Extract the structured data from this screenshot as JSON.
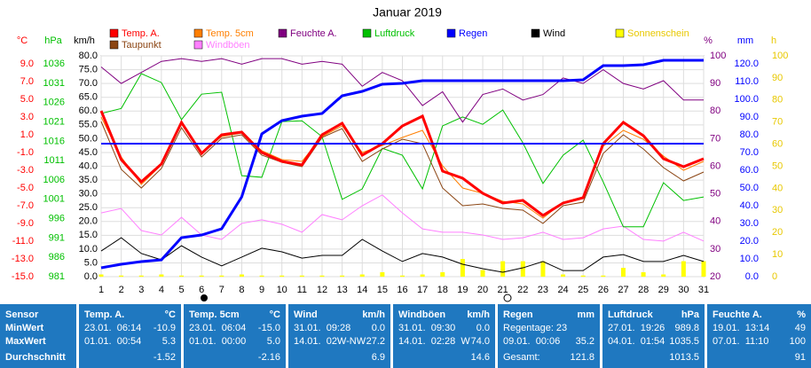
{
  "chart_data": {
    "type": "line",
    "title": "Januar 2019",
    "categories": [
      "1",
      "2",
      "3",
      "4",
      "5",
      "6",
      "7",
      "8",
      "9",
      "10",
      "11",
      "12",
      "13",
      "14",
      "15",
      "16",
      "17",
      "18",
      "19",
      "20",
      "21",
      "22",
      "23",
      "24",
      "25",
      "26",
      "27",
      "28",
      "29",
      "30",
      "31"
    ],
    "grid": true,
    "axes": {
      "temp": {
        "label": "°C",
        "color": "#ff0000",
        "lim": [
          -15,
          9.9
        ],
        "ticks": [
          {
            "value": 9,
            "label": "9.0"
          },
          {
            "value": 7,
            "label": "7.0"
          },
          {
            "value": 5,
            "label": "5.0"
          },
          {
            "value": 3,
            "label": "3.0"
          },
          {
            "value": 1,
            "label": "1.0"
          },
          {
            "value": -1,
            "label": "-1.0"
          },
          {
            "value": -3,
            "label": "-3.0"
          },
          {
            "value": -5,
            "label": "-5.0"
          },
          {
            "value": -7,
            "label": "-7.0"
          },
          {
            "value": -9,
            "label": "-9.0"
          },
          {
            "value": -11,
            "label": "-11.0"
          },
          {
            "value": -13,
            "label": "-13.0"
          },
          {
            "value": -15,
            "label": "-15.0"
          }
        ]
      },
      "hpa": {
        "label": "hPa",
        "color": "#00c000",
        "lim": [
          981,
          1038.1
        ],
        "ticks": [
          1036,
          1031,
          1026,
          1021,
          1016,
          1011,
          1006,
          1001,
          996,
          991,
          986,
          981
        ]
      },
      "kmh": {
        "label": "km/h",
        "color": "#000000",
        "lim": [
          0,
          80
        ],
        "ticks": [
          {
            "value": 80,
            "label": "80.0"
          },
          {
            "value": 75,
            "label": "75.0"
          },
          {
            "value": 70,
            "label": "70.0"
          },
          {
            "value": 65,
            "label": "65.0"
          },
          {
            "value": 60,
            "label": "60.0"
          },
          {
            "value": 55,
            "label": "55.0"
          },
          {
            "value": 50,
            "label": "50.0"
          },
          {
            "value": 45,
            "label": "45.0"
          },
          {
            "value": 40,
            "label": "40.0"
          },
          {
            "value": 35,
            "label": "35.0"
          },
          {
            "value": 30,
            "label": "30.0"
          },
          {
            "value": 25,
            "label": "25.0"
          },
          {
            "value": 20,
            "label": "20.0"
          },
          {
            "value": 15,
            "label": "15.0"
          },
          {
            "value": 10,
            "label": "10.0"
          },
          {
            "value": 5,
            "label": "5.0"
          },
          {
            "value": 0,
            "label": "0.0"
          }
        ]
      },
      "pct": {
        "label": "%",
        "color": "#800080",
        "lim": [
          20,
          100
        ],
        "ticks": [
          100,
          90,
          80,
          70,
          60,
          50,
          40,
          30,
          20
        ]
      },
      "mm": {
        "label": "mm",
        "color": "#0000ff",
        "lim": [
          0,
          124.5
        ],
        "ticks": [
          {
            "value": 120,
            "label": "120.0"
          },
          {
            "value": 110,
            "label": "110.0"
          },
          {
            "value": 100,
            "label": "100.0"
          },
          {
            "value": 90,
            "label": "90.0"
          },
          {
            "value": 80,
            "label": "80.0"
          },
          {
            "value": 70,
            "label": "70.0"
          },
          {
            "value": 60,
            "label": "60.0"
          },
          {
            "value": 50,
            "label": "50.0"
          },
          {
            "value": 40,
            "label": "40.0"
          },
          {
            "value": 30,
            "label": "30.0"
          },
          {
            "value": 20,
            "label": "20.0"
          },
          {
            "value": 10,
            "label": "10.0"
          },
          {
            "value": 0,
            "label": "0.0"
          }
        ]
      },
      "h": {
        "label": "h",
        "color": "#e8c800",
        "lim": [
          0,
          100
        ],
        "ticks": [
          100,
          90,
          80,
          70,
          60,
          50,
          40,
          30,
          20,
          10,
          0
        ]
      }
    },
    "series": [
      {
        "name": "Temp. A.",
        "color": "#ff0000",
        "axis": "temp",
        "values": [
          3.7,
          -1.8,
          -4.3,
          -2.3,
          2.4,
          -1.1,
          1.0,
          1.3,
          -1.0,
          -2.0,
          -2.4,
          1.0,
          2.3,
          -1.3,
          0.0,
          2.0,
          3.1,
          -3.1,
          -3.9,
          -5.6,
          -6.7,
          -6.4,
          -8.1,
          -6.7,
          -6.1,
          0.0,
          2.4,
          0.9,
          -1.7,
          -2.6,
          -1.7
        ]
      },
      {
        "name": "Temp. 5cm",
        "color": "#ff7f00",
        "axis": "temp",
        "values": [
          3.0,
          -1.5,
          -4.6,
          -2.4,
          2.2,
          -1.0,
          0.8,
          1.2,
          -0.8,
          -1.8,
          -2.0,
          0.8,
          2.0,
          -1.0,
          -0.2,
          0.7,
          1.5,
          -2.5,
          -5.0,
          -5.6,
          -6.5,
          -6.8,
          -8.4,
          -6.6,
          -6.0,
          -0.3,
          1.5,
          0.5,
          -1.4,
          -3.0,
          -2.0
        ]
      },
      {
        "name": "Feuchte A.",
        "color": "#800080",
        "axis": "pct",
        "values": [
          96,
          90,
          94,
          98,
          99,
          98,
          99,
          97,
          99,
          99,
          97,
          98,
          97,
          89,
          94,
          91,
          82,
          87,
          76,
          86,
          88,
          84,
          86,
          92,
          90,
          95,
          90,
          88,
          91,
          84,
          84
        ]
      },
      {
        "name": "Luftdruck",
        "color": "#00c000",
        "axis": "hpa",
        "values": [
          1023.2,
          1024.5,
          1033.5,
          1031.2,
          1021.6,
          1028.2,
          1028.7,
          1007.1,
          1006.7,
          1021.1,
          1021.3,
          1017.2,
          1001.0,
          1003.7,
          1014.2,
          1012.4,
          1003.7,
          1020.0,
          1022.3,
          1020.4,
          1024.1,
          1015.6,
          1005.1,
          1012.4,
          1016.3,
          1005.5,
          993.9,
          993.9,
          1005.3,
          1000.7,
          1001.6
        ]
      },
      {
        "name": "Regen",
        "color": "#0000ff",
        "axis": "mm",
        "values": [
          5,
          7,
          8.5,
          9.5,
          22,
          23.5,
          27,
          45,
          80.5,
          88,
          90.5,
          92,
          102,
          104.5,
          108.5,
          109,
          110.5,
          110.5,
          110.5,
          110.5,
          110.5,
          110.5,
          110.5,
          110.5,
          111,
          119,
          119,
          119.5,
          122,
          122,
          122
        ]
      },
      {
        "name": "Wind",
        "color": "#000000",
        "axis": "kmh",
        "values": [
          9.3,
          14.1,
          8.4,
          6.1,
          11.2,
          7.1,
          3.9,
          7.1,
          10.3,
          9.0,
          6.7,
          7.7,
          7.7,
          13.5,
          9.3,
          5.5,
          8.4,
          7.1,
          4.5,
          2.9,
          1.6,
          3.2,
          5.5,
          2.2,
          2.2,
          7.1,
          8.0,
          5.5,
          5.5,
          7.7,
          5.5
        ]
      },
      {
        "name": "Sonnenschein",
        "color": "#ffff00",
        "axis": "h",
        "kind": "bar",
        "values": [
          1,
          0.5,
          0.5,
          1,
          0.5,
          0.5,
          0.5,
          1,
          0.5,
          0.5,
          0.5,
          0.5,
          0.5,
          1,
          2,
          0.5,
          1,
          2,
          8,
          3,
          7,
          7,
          7,
          1,
          0.5,
          0.5,
          4,
          2,
          1,
          7,
          7
        ]
      },
      {
        "name": "Taupunkt",
        "color": "#8b4513",
        "axis": "temp",
        "values": [
          2.5,
          -2.9,
          -5.0,
          -2.8,
          1.8,
          -1.5,
          0.6,
          1.0,
          -1.3,
          -2.1,
          -2.6,
          0.7,
          1.7,
          -2.0,
          -0.6,
          0.5,
          0.0,
          -5.0,
          -7.0,
          -6.8,
          -7.3,
          -7.5,
          -9.0,
          -7.0,
          -6.6,
          -1.1,
          1.0,
          -0.6,
          -2.7,
          -4.2,
          -3.2
        ]
      },
      {
        "name": "Windböen",
        "color": "#ff80ff",
        "axis": "kmh",
        "values": [
          23.1,
          24.7,
          16.7,
          15.1,
          21.5,
          15.1,
          13.5,
          19.3,
          20.6,
          19.0,
          16.1,
          22.5,
          20.6,
          25.7,
          29.6,
          23.1,
          17.3,
          16.1,
          16.1,
          15.1,
          13.5,
          14.1,
          16.1,
          13.5,
          14.1,
          17.3,
          18.3,
          13.5,
          12.9,
          16.1,
          12.9
        ]
      }
    ]
  },
  "table": {
    "rowlabels": [
      "Sensor",
      "MinWert",
      "MaxWert",
      "Durchschnitt"
    ],
    "panels": [
      {
        "title": "Temp. A.",
        "unit": "°C",
        "rows": [
          [
            "23.01.  06:14",
            "-10.9"
          ],
          [
            "01.01.  00:54",
            "5.3"
          ],
          [
            "",
            "-1.52"
          ]
        ]
      },
      {
        "title": "Temp. 5cm",
        "unit": "°C",
        "rows": [
          [
            "23.01.  06:04",
            "-15.0"
          ],
          [
            "01.01.  00:00",
            "5.0"
          ],
          [
            "",
            "-2.16"
          ]
        ]
      },
      {
        "title": "Wind",
        "unit": "km/h",
        "rows": [
          [
            "31.01.  09:28",
            "0.0"
          ],
          [
            "14.01.  02W-NW",
            "27.2"
          ],
          [
            "",
            "6.9"
          ]
        ]
      },
      {
        "title": "Windböen",
        "unit": "km/h",
        "rows": [
          [
            "31.01.  09:30",
            "0.0"
          ],
          [
            "14.01.  02:28  W",
            "74.0"
          ],
          [
            "",
            "14.6"
          ]
        ]
      },
      {
        "title": "Regen",
        "unit": "mm",
        "rows": [
          [
            "Regentage: 23",
            ""
          ],
          [
            "09.01.  00:06",
            "35.2"
          ],
          [
            "Gesamt:",
            "121.8"
          ]
        ]
      },
      {
        "title": "Luftdruck",
        "unit": "hPa",
        "rows": [
          [
            "27.01.  19:26",
            "989.8"
          ],
          [
            "04.01.  01:54",
            "1035.5"
          ],
          [
            "",
            "1013.5"
          ]
        ]
      },
      {
        "title": "Feuchte A.",
        "unit": "%",
        "rows": [
          [
            "19.01.  13:14",
            "49"
          ],
          [
            "07.01.  11:10",
            "100"
          ],
          [
            "",
            "91"
          ]
        ]
      }
    ]
  }
}
